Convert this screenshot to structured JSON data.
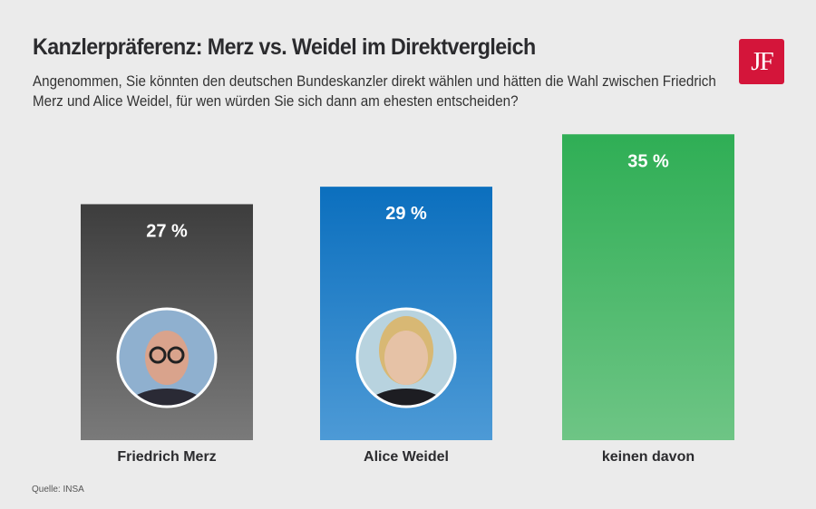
{
  "chart_data": {
    "type": "bar",
    "title": "Kanzlerpräferenz: Merz vs. Weidel im Direktvergleich",
    "subtitle": "Angenommen, Sie könnten den deutschen Bundeskanzler direkt wählen und hätten die Wahl zwischen Friedrich Merz und Alice Weidel, für wen würden Sie sich dann am ehesten entscheiden?",
    "categories": [
      "Friedrich Merz",
      "Alice Weidel",
      "keinen davon"
    ],
    "values": [
      27,
      29,
      35
    ],
    "value_labels": [
      "27 %",
      "29 %",
      "35 %"
    ],
    "colors": [
      [
        "#3d3d3d",
        "#7a7a7a"
      ],
      [
        "#0b6fbe",
        "#4d9ad6"
      ],
      [
        "#2fae55",
        "#6ec585"
      ]
    ],
    "images": [
      "portrait-merz",
      "portrait-weidel",
      null
    ],
    "grid": false,
    "source": "Quelle: INSA"
  },
  "logo": {
    "text": "JF",
    "color": "#d4153a"
  }
}
